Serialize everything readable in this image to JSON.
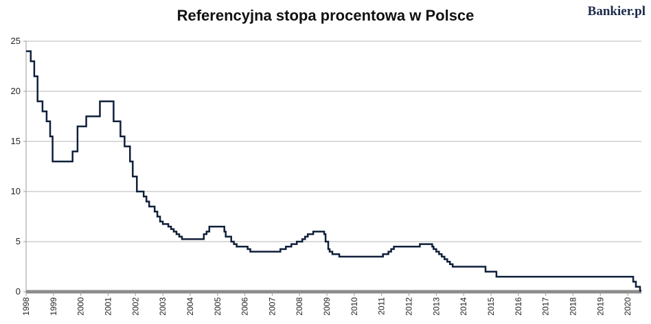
{
  "chart_data": {
    "type": "line",
    "title": "Referencyjna stopa procentowa w Polsce",
    "xlabel": "",
    "ylabel": "",
    "xlim": [
      1998,
      2020.5
    ],
    "ylim": [
      0,
      25
    ],
    "yticks": [
      0,
      5,
      10,
      15,
      20,
      25
    ],
    "xticks": [
      "1998",
      "1999",
      "2000",
      "2001",
      "2002",
      "2003",
      "2004",
      "2005",
      "2006",
      "2007",
      "2008",
      "2009",
      "2010",
      "2011",
      "2012",
      "2013",
      "2014",
      "2015",
      "2016",
      "2017",
      "2018",
      "2019",
      "2020"
    ],
    "grid": "horizontal",
    "legend": "none",
    "line_color": "#0f1f3a",
    "series": [
      {
        "step": true,
        "points": [
          [
            1998.0,
            24.0
          ],
          [
            1998.17,
            23.0
          ],
          [
            1998.3,
            21.5
          ],
          [
            1998.42,
            19.0
          ],
          [
            1998.6,
            18.0
          ],
          [
            1998.75,
            17.0
          ],
          [
            1998.88,
            15.5
          ],
          [
            1998.97,
            13.0
          ],
          [
            1999.7,
            14.0
          ],
          [
            1999.88,
            16.5
          ],
          [
            2000.2,
            17.5
          ],
          [
            2000.7,
            19.0
          ],
          [
            2001.2,
            17.0
          ],
          [
            2001.45,
            15.5
          ],
          [
            2001.6,
            14.5
          ],
          [
            2001.8,
            13.0
          ],
          [
            2001.9,
            11.5
          ],
          [
            2002.05,
            10.0
          ],
          [
            2002.3,
            9.5
          ],
          [
            2002.4,
            9.0
          ],
          [
            2002.5,
            8.5
          ],
          [
            2002.7,
            8.0
          ],
          [
            2002.8,
            7.5
          ],
          [
            2002.9,
            7.0
          ],
          [
            2003.0,
            6.75
          ],
          [
            2003.2,
            6.5
          ],
          [
            2003.3,
            6.25
          ],
          [
            2003.4,
            6.0
          ],
          [
            2003.5,
            5.75
          ],
          [
            2003.6,
            5.5
          ],
          [
            2003.7,
            5.25
          ],
          [
            2004.5,
            5.75
          ],
          [
            2004.6,
            6.0
          ],
          [
            2004.7,
            6.5
          ],
          [
            2005.25,
            6.0
          ],
          [
            2005.3,
            5.5
          ],
          [
            2005.5,
            5.0
          ],
          [
            2005.6,
            4.75
          ],
          [
            2005.7,
            4.5
          ],
          [
            2006.1,
            4.25
          ],
          [
            2006.2,
            4.0
          ],
          [
            2007.3,
            4.25
          ],
          [
            2007.5,
            4.5
          ],
          [
            2007.7,
            4.75
          ],
          [
            2007.9,
            5.0
          ],
          [
            2008.1,
            5.25
          ],
          [
            2008.2,
            5.5
          ],
          [
            2008.3,
            5.75
          ],
          [
            2008.5,
            6.0
          ],
          [
            2008.9,
            5.75
          ],
          [
            2008.95,
            5.0
          ],
          [
            2009.05,
            4.25
          ],
          [
            2009.1,
            4.0
          ],
          [
            2009.2,
            3.75
          ],
          [
            2009.45,
            3.5
          ],
          [
            2011.05,
            3.75
          ],
          [
            2011.25,
            4.0
          ],
          [
            2011.35,
            4.25
          ],
          [
            2011.45,
            4.5
          ],
          [
            2012.4,
            4.75
          ],
          [
            2012.85,
            4.5
          ],
          [
            2012.9,
            4.25
          ],
          [
            2013.0,
            4.0
          ],
          [
            2013.1,
            3.75
          ],
          [
            2013.2,
            3.5
          ],
          [
            2013.3,
            3.25
          ],
          [
            2013.4,
            3.0
          ],
          [
            2013.5,
            2.75
          ],
          [
            2013.6,
            2.5
          ],
          [
            2014.8,
            2.0
          ],
          [
            2015.2,
            1.5
          ],
          [
            2020.2,
            1.0
          ],
          [
            2020.3,
            0.5
          ],
          [
            2020.45,
            0.1
          ],
          [
            2020.5,
            0.1
          ]
        ]
      }
    ]
  },
  "brand": {
    "name": "Bankier",
    "suffix": ".pl"
  }
}
